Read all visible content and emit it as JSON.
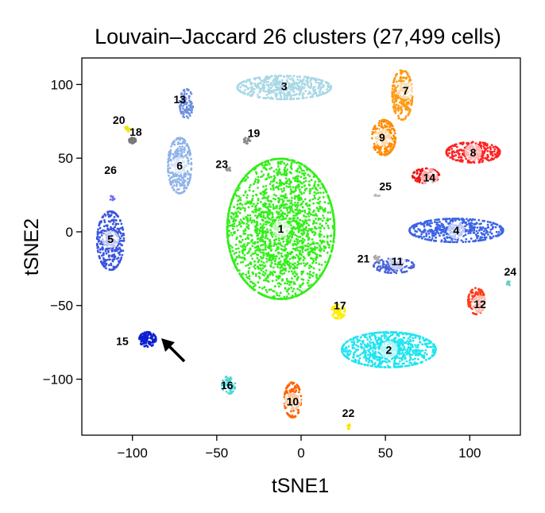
{
  "chart_data": {
    "type": "scatter",
    "title": "Louvain–Jaccard 26 clusters (27,499 cells)",
    "xlabel": "tSNE1",
    "ylabel": "tSNE2",
    "xlim": [
      -130,
      130
    ],
    "ylim": [
      -138,
      118
    ],
    "xticks": [
      -100,
      -50,
      0,
      50,
      100
    ],
    "yticks": [
      -100,
      -50,
      0,
      50,
      100
    ],
    "grid": false,
    "legend": "none",
    "clusters": [
      {
        "id": "1",
        "center": [
          -12,
          2
        ],
        "spread": [
          32,
          48
        ],
        "color": "#33ee1a",
        "n": 2200,
        "label_bg": true
      },
      {
        "id": "2",
        "center": [
          52,
          -80
        ],
        "spread": [
          28,
          12
        ],
        "color": "#22e4f0",
        "n": 800,
        "label_bg": true
      },
      {
        "id": "3",
        "center": [
          -10,
          98
        ],
        "spread": [
          28,
          8
        ],
        "color": "#a9d8e6",
        "n": 500,
        "label_bg": false
      },
      {
        "id": "4",
        "center": [
          92,
          1
        ],
        "spread": [
          28,
          8
        ],
        "color": "#3d63e6",
        "n": 500,
        "label_bg": true
      },
      {
        "id": "5",
        "center": [
          -113,
          -6
        ],
        "spread": [
          8,
          20
        ],
        "color": "#3b57de",
        "n": 350,
        "label_bg": true
      },
      {
        "id": "6",
        "center": [
          -72,
          45
        ],
        "spread": [
          7,
          19
        ],
        "color": "#8fb3e8",
        "n": 300,
        "label_bg": true
      },
      {
        "id": "7",
        "center": [
          60,
          93
        ],
        "spread": [
          6,
          17
        ],
        "color": "#ff9a14",
        "n": 260,
        "label_bg": true
      },
      {
        "id": "8",
        "center": [
          102,
          54
        ],
        "spread": [
          16,
          7
        ],
        "color": "#ff2222",
        "n": 320,
        "label_bg": true
      },
      {
        "id": "9",
        "center": [
          49,
          64
        ],
        "spread": [
          7,
          12
        ],
        "color": "#ff8a00",
        "n": 220,
        "label_bg": true
      },
      {
        "id": "10",
        "center": [
          -5,
          -114
        ],
        "spread": [
          5,
          12
        ],
        "color": "#ff6200",
        "n": 160,
        "label_bg": true
      },
      {
        "id": "11",
        "center": [
          55,
          -23
        ],
        "spread": [
          12,
          5
        ],
        "color": "#4a63d8",
        "n": 160,
        "label_bg": true
      },
      {
        "id": "12",
        "center": [
          104,
          -47
        ],
        "spread": [
          5,
          9
        ],
        "color": "#ff3a1a",
        "n": 130,
        "label_bg": true
      },
      {
        "id": "13",
        "center": [
          -68,
          87
        ],
        "spread": [
          4,
          10
        ],
        "color": "#6e8fe0",
        "n": 100,
        "label_bg": false
      },
      {
        "id": "14",
        "center": [
          74,
          38
        ],
        "spread": [
          8,
          5
        ],
        "color": "#ee1111",
        "n": 120,
        "label_bg": true
      },
      {
        "id": "15",
        "center": [
          -91,
          -73
        ],
        "spread": [
          5,
          5
        ],
        "color": "#0d1fd0",
        "n": 110,
        "label_bg": false
      },
      {
        "id": "16",
        "center": [
          -43,
          -104
        ],
        "spread": [
          4,
          6
        ],
        "color": "#4fd6d6",
        "n": 60,
        "label_bg": false
      },
      {
        "id": "17",
        "center": [
          22,
          -54
        ],
        "spread": [
          4,
          5
        ],
        "color": "#ffee00",
        "n": 70,
        "label_bg": false
      },
      {
        "id": "18",
        "center": [
          -100,
          62
        ],
        "spread": [
          2,
          2
        ],
        "color": "#777777",
        "n": 30,
        "label_bg": false
      },
      {
        "id": "19",
        "center": [
          -32,
          62
        ],
        "spread": [
          2,
          2
        ],
        "color": "#888888",
        "n": 20,
        "label_bg": false
      },
      {
        "id": "20",
        "center": [
          -103,
          70
        ],
        "spread": [
          1.5,
          2
        ],
        "color": "#e8e800",
        "n": 15,
        "label_bg": false
      },
      {
        "id": "21",
        "center": [
          45,
          -18
        ],
        "spread": [
          2,
          2
        ],
        "color": "#aaaaaa",
        "n": 12,
        "label_bg": false
      },
      {
        "id": "22",
        "center": [
          28,
          -132
        ],
        "spread": [
          1,
          2
        ],
        "color": "#ffe600",
        "n": 12,
        "label_bg": false
      },
      {
        "id": "23",
        "center": [
          -43,
          43
        ],
        "spread": [
          1.5,
          2
        ],
        "color": "#999999",
        "n": 12,
        "label_bg": false
      },
      {
        "id": "24",
        "center": [
          123,
          -35
        ],
        "spread": [
          1,
          1.5
        ],
        "color": "#66cccc",
        "n": 10,
        "label_bg": false
      },
      {
        "id": "25",
        "center": [
          45,
          25
        ],
        "spread": [
          1.5,
          1.5
        ],
        "color": "#bbbbbb",
        "n": 8,
        "label_bg": false
      },
      {
        "id": "26",
        "center": [
          -112,
          23
        ],
        "spread": [
          1.5,
          1.5
        ],
        "color": "#6a6aff",
        "n": 8,
        "label_bg": false
      }
    ],
    "label_positions": {
      "1": [
        -12,
        2
      ],
      "2": [
        52,
        -80
      ],
      "3": [
        -10,
        99
      ],
      "4": [
        92,
        1
      ],
      "5": [
        -113,
        -5
      ],
      "6": [
        -72,
        45
      ],
      "7": [
        62,
        96
      ],
      "8": [
        102,
        54
      ],
      "9": [
        48,
        64
      ],
      "10": [
        -5,
        -115
      ],
      "11": [
        57,
        -20
      ],
      "12": [
        106,
        -49
      ],
      "13": [
        -72,
        90
      ],
      "14": [
        76,
        37
      ],
      "15": [
        -106,
        -74
      ],
      "16": [
        -44,
        -104
      ],
      "17": [
        23,
        -50
      ],
      "18": [
        -98,
        68
      ],
      "19": [
        -28,
        67
      ],
      "20": [
        -108,
        76
      ],
      "21": [
        37,
        -18
      ],
      "22": [
        28,
        -123
      ],
      "23": [
        -47,
        46
      ],
      "24": [
        124,
        -27
      ],
      "25": [
        50,
        31
      ],
      "26": [
        -113,
        42
      ]
    },
    "annotations": [
      {
        "type": "arrow",
        "target_cluster": "15",
        "direction": "pointing-up-left",
        "color": "#000000"
      }
    ]
  }
}
